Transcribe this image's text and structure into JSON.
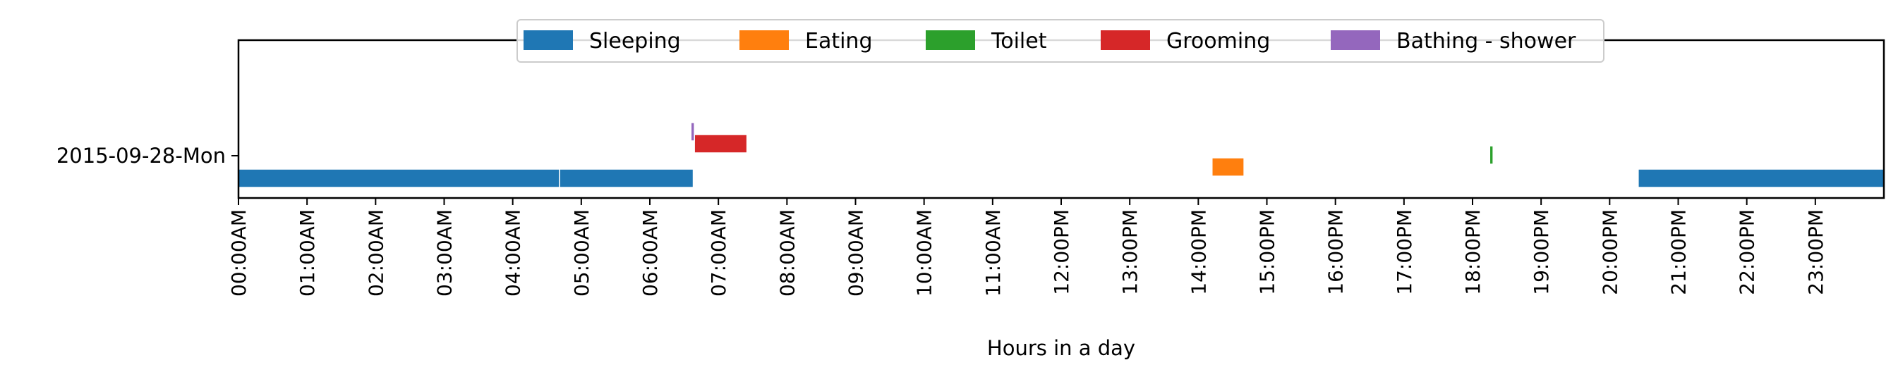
{
  "chart_data": {
    "type": "timeline",
    "xlabel": "Hours in a day",
    "ylabel": "",
    "xlim_hours": [
      0,
      24
    ],
    "x_ticks": [
      "00:00AM",
      "01:00AM",
      "02:00AM",
      "03:00AM",
      "04:00AM",
      "05:00AM",
      "06:00AM",
      "07:00AM",
      "08:00AM",
      "09:00AM",
      "10:00AM",
      "11:00AM",
      "12:00PM",
      "13:00PM",
      "14:00PM",
      "15:00PM",
      "16:00PM",
      "17:00PM",
      "18:00PM",
      "19:00PM",
      "20:00PM",
      "21:00PM",
      "22:00PM",
      "23:00PM"
    ],
    "y_categories": [
      "2015-09-28-Mon"
    ],
    "legend_position": "top-center",
    "grid": false,
    "series": [
      {
        "name": "Sleeping",
        "color": "#1f77b4",
        "intervals": [
          [
            "00:00",
            "04:41"
          ],
          [
            "04:41",
            "06:38"
          ],
          [
            "20:25",
            "24:00"
          ]
        ]
      },
      {
        "name": "Eating",
        "color": "#ff7f0e",
        "intervals": [
          [
            "14:12",
            "14:40"
          ]
        ]
      },
      {
        "name": "Toilet",
        "color": "#2ca02c",
        "intervals": [
          [
            "18:15",
            "18:18"
          ]
        ]
      },
      {
        "name": "Grooming",
        "color": "#d62728",
        "intervals": [
          [
            "06:39",
            "07:25"
          ]
        ]
      },
      {
        "name": "Bathing - shower",
        "color": "#9467bd",
        "intervals": [
          [
            "06:36",
            "06:39"
          ]
        ]
      }
    ]
  }
}
